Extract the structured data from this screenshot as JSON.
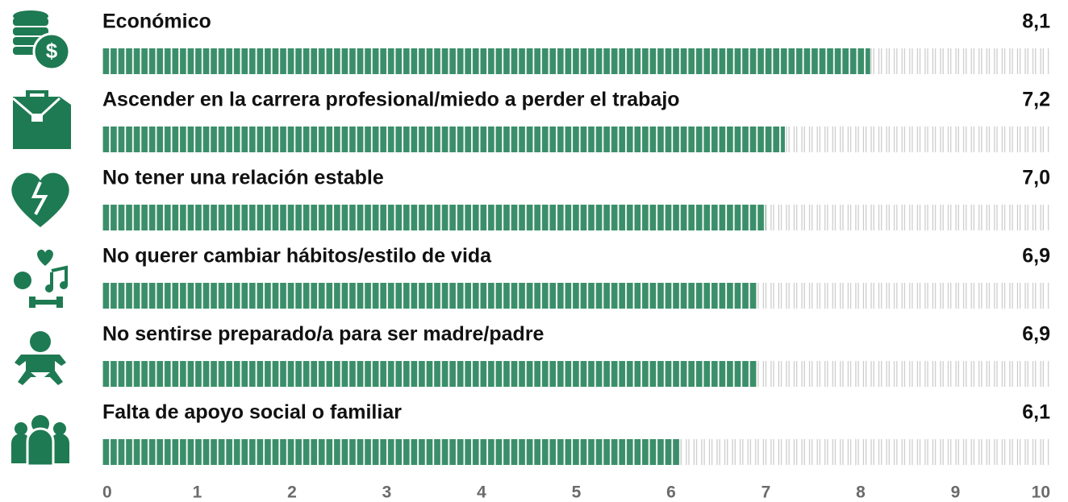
{
  "chart_data": {
    "type": "bar",
    "orientation": "horizontal",
    "categories": [
      "Económico",
      "Ascender en la carrera profesional/miedo a perder el trabajo",
      "No tener una relación estable",
      "No querer cambiar hábitos/estilo de vida",
      "No sentirse preparado/a para ser madre/padre",
      "Falta de apoyo social o familiar"
    ],
    "values": [
      8.1,
      7.2,
      7.0,
      6.9,
      6.9,
      6.1
    ],
    "value_labels": [
      "8,1",
      "7,2",
      "7,0",
      "6,9",
      "6,9",
      "6,1"
    ],
    "color": "#3a8f6a",
    "xlim": [
      0,
      10
    ],
    "xticks": [
      0,
      1,
      2,
      3,
      4,
      5,
      6,
      7,
      8,
      9,
      10
    ]
  }
}
